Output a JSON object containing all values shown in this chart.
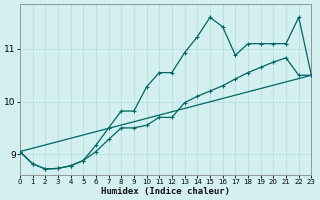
{
  "xlabel": "Humidex (Indice chaleur)",
  "bg_color": "#d4efef",
  "grid_color": "#b8dcdc",
  "line_color": "#006666",
  "xlim": [
    0,
    23
  ],
  "ylim": [
    8.6,
    11.85
  ],
  "yticks": [
    9,
    10,
    11
  ],
  "xticks": [
    0,
    1,
    2,
    3,
    4,
    5,
    6,
    7,
    8,
    9,
    10,
    11,
    12,
    13,
    14,
    15,
    16,
    17,
    18,
    19,
    20,
    21,
    22,
    23
  ],
  "line1_x": [
    0,
    1,
    2,
    3,
    4,
    5,
    6,
    7,
    8,
    9,
    10,
    11,
    12,
    13,
    14,
    15,
    16,
    17,
    18,
    19,
    20,
    21,
    22,
    23
  ],
  "line1_y": [
    9.05,
    8.82,
    8.72,
    8.73,
    8.78,
    8.88,
    9.17,
    9.5,
    9.82,
    9.82,
    10.28,
    10.55,
    10.55,
    10.93,
    11.23,
    11.6,
    11.42,
    10.88,
    11.1,
    11.1,
    11.1,
    11.1,
    11.6,
    10.5
  ],
  "line2_x": [
    0,
    1,
    2,
    3,
    4,
    5,
    6,
    7,
    8,
    9,
    10,
    11,
    12,
    13,
    14,
    15,
    16,
    17,
    18,
    19,
    20,
    21,
    22,
    23
  ],
  "line2_y": [
    9.05,
    8.82,
    8.72,
    8.73,
    8.78,
    8.88,
    9.05,
    9.28,
    9.5,
    9.5,
    9.55,
    9.7,
    9.7,
    9.98,
    10.1,
    10.2,
    10.3,
    10.43,
    10.55,
    10.65,
    10.75,
    10.83,
    10.5,
    10.5
  ],
  "line3_x": [
    0,
    23
  ],
  "line3_y": [
    9.05,
    10.5
  ],
  "figsize": [
    3.2,
    2.0
  ],
  "dpi": 100
}
